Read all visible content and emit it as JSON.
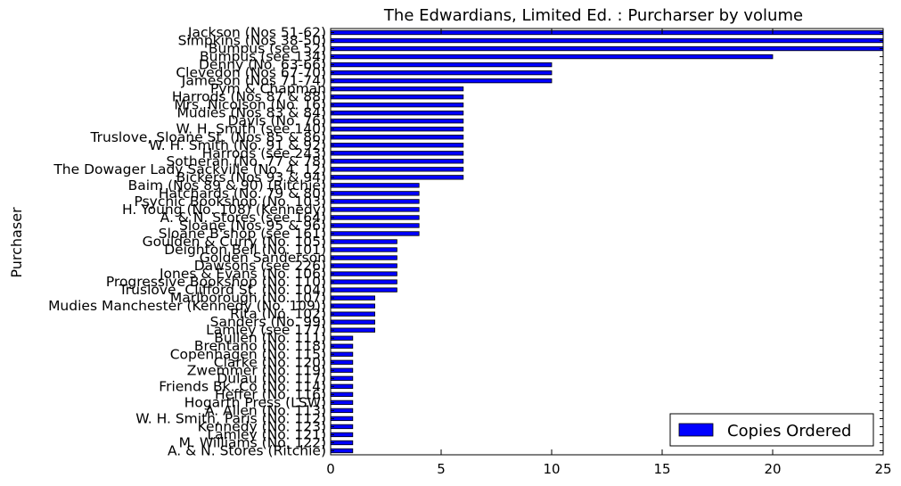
{
  "chart_data": {
    "type": "bar",
    "orientation": "horizontal",
    "title": "The Edwardians, Limited Ed. : Purcharser by volume",
    "xlabel": "",
    "ylabel": "Purchaser",
    "xlim": [
      0,
      25
    ],
    "xticks": [
      0,
      5,
      10,
      15,
      20,
      25
    ],
    "grid": false,
    "legend_position": "lower-right",
    "bar_color": "#0000ff",
    "categories": [
      "Jackson (Nos 51-62)",
      "Simpkins (Nos 38-50)",
      "Bumpus (see 52)",
      "Bumpus (see 134)",
      "Denny (No. 63-66)",
      "Clevedon (Nos 67-70)",
      "Jameson (Nos 71-74)",
      "Pym & Chapman",
      "Harrods (Nos 87 & 88)",
      "Mrs. Nicolson (No. 16)",
      "Mudies (Nos 83 & 84)",
      "Davis (No. 76)",
      "W. H. Smith (see 140)",
      "Truslove, Sloane St. (Nos 85 & 86)",
      "W. H. Smith (No. 91 & 92)",
      "Harrods (see 243)",
      "Sotheran (No. 77 & 78)",
      "The Dowager Lady Sackville (No. 4, 12)",
      "Bickers (Nos 93 & 94)",
      "Baim (Nos 89 & 90) (Ritchie)",
      "Hatchards (No. 79 & 80)",
      "Psychic Bookshop (No. 103)",
      "H. Young (No. 108) (Kennedy)",
      "A. & N. Stores (see 164)",
      "Sloane (Nos 95 & 96)",
      "Sloane B'shop (see 161)",
      "Goulden & Curry (No. 105)",
      "Deighton Bell (No. 101)",
      "Golden Sanderson",
      "Dawsons (see 226)",
      "Jones & Evans (No. 106)",
      "Progressive Bookshop (No. 110)",
      "Truslove, Clifford St. (No. 104)",
      "Marlborough (No. 107)",
      "Mudies Manchester (Kennedy (No. 109))",
      "Rita (No. 102)",
      "Sanders (No. 99)",
      "Lamley (see 177)",
      "Bullen (No. 111)",
      "Brentano (No. 118)",
      "Copenhagen (No. 115)",
      "Clarke (No. 120)",
      "Zwemmer (No. 119)",
      "Dulau (No. 117)",
      "Friends Bk. Co (No. 114)",
      "Heffer (No. 116)",
      "Hogarth Press (LSW)",
      "A. Allen (No. 113)",
      "W. H. Smith, Paris (No. 112)",
      "Kennedy (No. 123)",
      "Lamley (No. 121)",
      "M. Williams (No. 122)",
      "A. & N. Stores (Ritchie)"
    ],
    "series": [
      {
        "name": "Copies Ordered",
        "values": [
          25,
          25,
          25,
          20,
          10,
          10,
          10,
          6,
          6,
          6,
          6,
          6,
          6,
          6,
          6,
          6,
          6,
          6,
          6,
          4,
          4,
          4,
          4,
          4,
          4,
          4,
          3,
          3,
          3,
          3,
          3,
          3,
          3,
          2,
          2,
          2,
          2,
          2,
          1,
          1,
          1,
          1,
          1,
          1,
          1,
          1,
          1,
          1,
          1,
          1,
          1,
          1,
          1
        ]
      }
    ]
  }
}
